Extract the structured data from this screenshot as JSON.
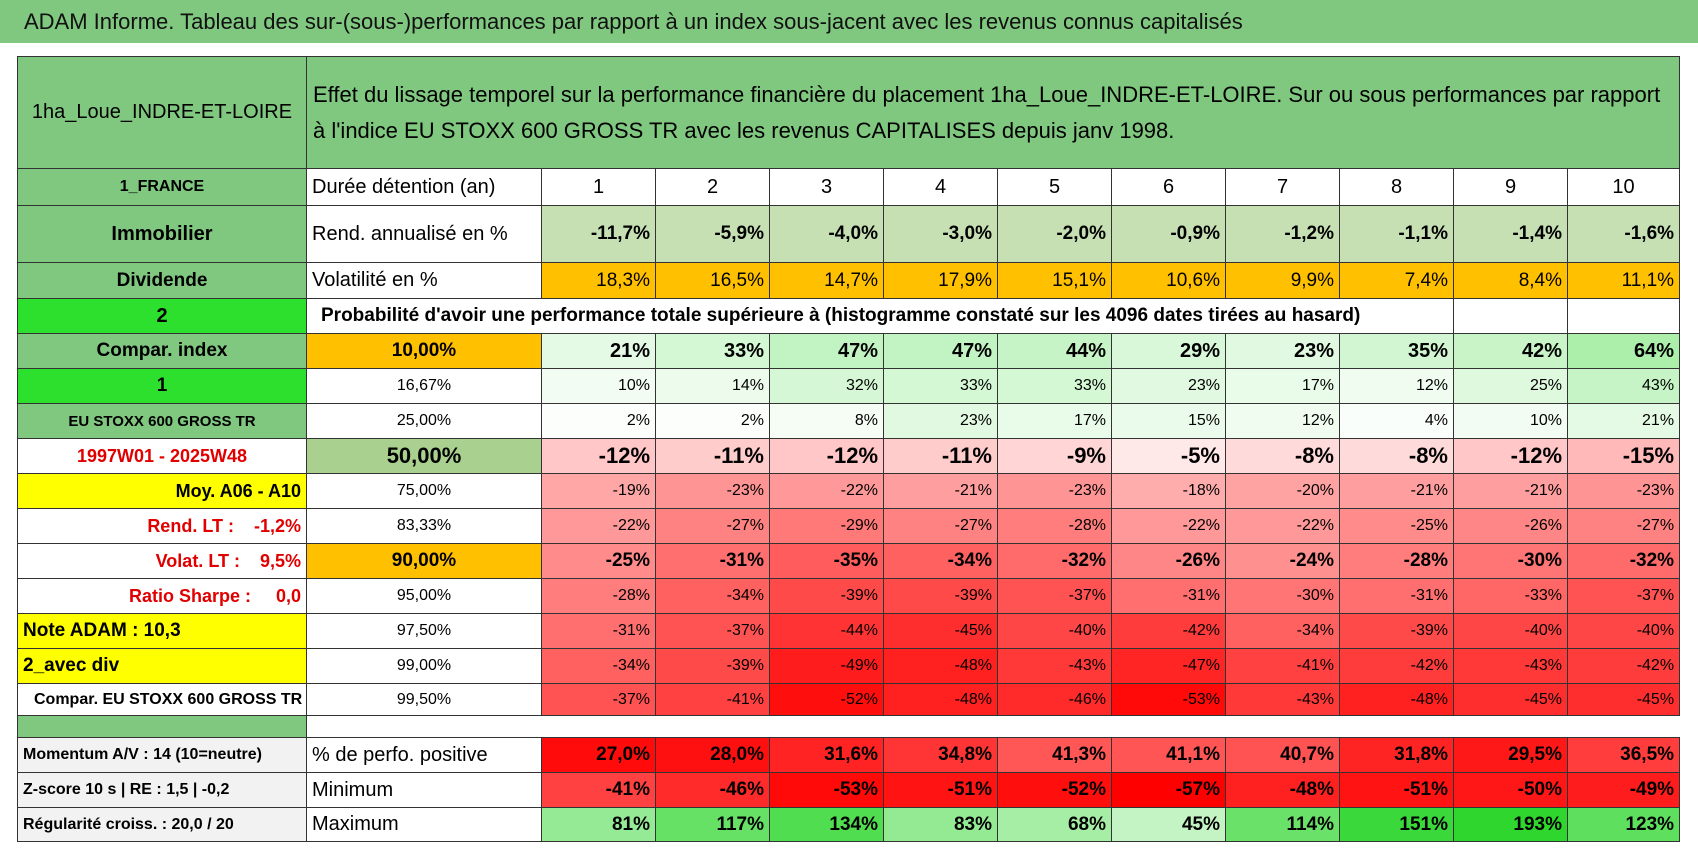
{
  "title": "ADAM Informe. Tableau des sur-(sous-)performances par rapport à un index sous-jacent avec les revenus connus capitalisés",
  "top": {
    "name": "1ha_Loue_INDRE-ET-LOIRE",
    "description": "Effet du lissage temporel sur la performance financière du placement 1ha_Loue_INDRE-ET-LOIRE. Sur ou sous performances par rapport à l'indice EU STOXX 600 GROSS TR avec les revenus CAPITALISES depuis janv 1998."
  },
  "grid": [
    {
      "label": "1_FRANCE",
      "metric": "Durée détention (an)",
      "values": [
        "1",
        "2",
        "3",
        "4",
        "5",
        "6",
        "7",
        "8",
        "9",
        "10"
      ]
    },
    {
      "label": "Immobilier",
      "metric": "Rend. annualisé en %",
      "values": [
        "-11,7%",
        "-5,9%",
        "-4,0%",
        "-3,0%",
        "-2,0%",
        "-0,9%",
        "-1,2%",
        "-1,1%",
        "-1,4%",
        "-1,6%"
      ]
    },
    {
      "label": "Dividende",
      "metric": "Volatilité en %",
      "values": [
        "18,3%",
        "16,5%",
        "14,7%",
        "17,9%",
        "15,1%",
        "10,6%",
        "9,9%",
        "7,4%",
        "8,4%",
        "11,1%"
      ]
    },
    {
      "label": "2",
      "metric": "Probabilité d'avoir une performance totale supérieure à (histogramme constaté sur les 4096 dates tirées au hasard)"
    },
    {
      "label": "Compar. index",
      "metric": "10,00%",
      "values": [
        "21%",
        "33%",
        "47%",
        "47%",
        "44%",
        "29%",
        "23%",
        "35%",
        "42%",
        "64%"
      ]
    },
    {
      "label": "1",
      "metric": "16,67%",
      "values": [
        "10%",
        "14%",
        "32%",
        "33%",
        "33%",
        "23%",
        "17%",
        "12%",
        "25%",
        "43%"
      ]
    },
    {
      "label": "EU STOXX 600 GROSS TR",
      "metric": "25,00%",
      "values": [
        "2%",
        "2%",
        "8%",
        "23%",
        "17%",
        "15%",
        "12%",
        "4%",
        "10%",
        "21%"
      ]
    },
    {
      "label": "1997W01 - 2025W48",
      "metric": "50,00%",
      "values": [
        "-12%",
        "-11%",
        "-12%",
        "-11%",
        "-9%",
        "-5%",
        "-8%",
        "-8%",
        "-12%",
        "-15%"
      ]
    },
    {
      "label": "Moy. A06 - A10",
      "metric": "75,00%",
      "values": [
        "-19%",
        "-23%",
        "-22%",
        "-21%",
        "-23%",
        "-18%",
        "-20%",
        "-21%",
        "-21%",
        "-23%"
      ]
    },
    {
      "label": "Rend. LT :    -1,2%",
      "metric": "83,33%",
      "values": [
        "-22%",
        "-27%",
        "-29%",
        "-27%",
        "-28%",
        "-22%",
        "-22%",
        "-25%",
        "-26%",
        "-27%"
      ]
    },
    {
      "label": "Volat. LT :    9,5%",
      "metric": "90,00%",
      "values": [
        "-25%",
        "-31%",
        "-35%",
        "-34%",
        "-32%",
        "-26%",
        "-24%",
        "-28%",
        "-30%",
        "-32%"
      ]
    },
    {
      "label": "Ratio Sharpe :     0,0",
      "metric": "95,00%",
      "values": [
        "-28%",
        "-34%",
        "-39%",
        "-39%",
        "-37%",
        "-31%",
        "-30%",
        "-31%",
        "-33%",
        "-37%"
      ]
    },
    {
      "label": "Note ADAM : 10,3",
      "metric": "97,50%",
      "values": [
        "-31%",
        "-37%",
        "-44%",
        "-45%",
        "-40%",
        "-42%",
        "-34%",
        "-39%",
        "-40%",
        "-40%"
      ]
    },
    {
      "label": "2_avec div",
      "metric": "99,00%",
      "values": [
        "-34%",
        "-39%",
        "-49%",
        "-48%",
        "-43%",
        "-47%",
        "-41%",
        "-42%",
        "-43%",
        "-42%"
      ]
    },
    {
      "label": "Compar. EU STOXX 600 GROSS TR",
      "metric": "99,50%",
      "values": [
        "-37%",
        "-41%",
        "-52%",
        "-48%",
        "-46%",
        "-53%",
        "-43%",
        "-48%",
        "-45%",
        "-45%"
      ]
    }
  ],
  "summary": [
    {
      "label": "Momentum A/V : 14 (10=neutre)",
      "metric": "% de perfo. positive",
      "values": [
        "27,0%",
        "28,0%",
        "31,6%",
        "34,8%",
        "41,3%",
        "41,1%",
        "40,7%",
        "31,8%",
        "29,5%",
        "36,5%"
      ]
    },
    {
      "label": "Z-score 10 s | RE : 1,5 | -0,2",
      "metric": "Minimum",
      "values": [
        "-41%",
        "-46%",
        "-53%",
        "-51%",
        "-52%",
        "-57%",
        "-48%",
        "-51%",
        "-50%",
        "-49%"
      ]
    },
    {
      "label": "Régularité croiss. : 20,0 / 20",
      "metric": "Maximum",
      "values": [
        "81%",
        "117%",
        "134%",
        "83%",
        "68%",
        "45%",
        "114%",
        "151%",
        "193%",
        "123%"
      ]
    }
  ]
}
